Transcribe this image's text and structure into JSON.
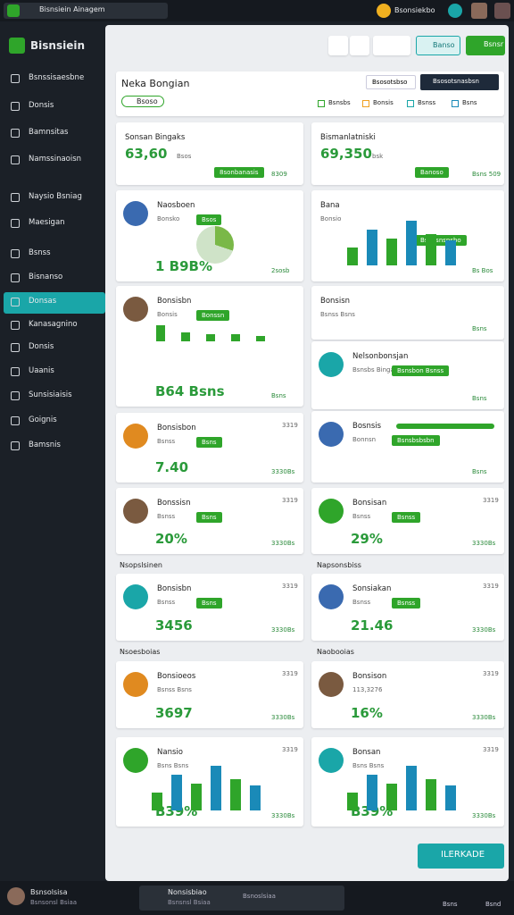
{
  "topbar": {
    "search": "Bisnsiein Ainagem",
    "user": "Bsonsiekbo"
  },
  "sidebar": {
    "brand": "Bisnsiein",
    "items": [
      "Bsnssisaesbne",
      "Donsis",
      "Bamnsitas",
      "Namssinaoisn",
      "Naysio Bsniag",
      "Maesigan",
      "Bsnss",
      "Bisnanso",
      "Donsas",
      "Kanasagnino",
      "Donsis",
      "Uaanis",
      "Sunsisiaisis",
      "Goignis",
      "Bamsnis"
    ]
  },
  "header": {
    "outline_button": "Banso",
    "green_button": "Bsnsr"
  },
  "panel": {
    "title": "Neka Bongian",
    "tag": "Bsoso",
    "dropdown": "Bsosotsbso",
    "dark_button": "Bsosotsnasbsn",
    "chips": [
      "Bsnsbs",
      "Bonsis",
      "Bsnss",
      "Bsns"
    ]
  },
  "cards": [
    {
      "title": "Sonsan Bingaks",
      "value": "63,60",
      "unit": "Bsos",
      "badge": "8sonbanasis",
      "foot": "8309"
    },
    {
      "title": "Bismanlatniski",
      "value": "69,350",
      "unit": "bsk",
      "badge": "Banoso",
      "foot": "Bsns 509"
    },
    {
      "title": "Naosboen",
      "sub": "Bonsko",
      "value": "1 B9B%",
      "badge": "Bsos",
      "foot": "2sosb"
    },
    {
      "title": "Bana",
      "sub": "Bonsio",
      "badge": "Bsnasnsnsbo",
      "foot": "Bs Bos"
    },
    {
      "title": "Bonsisbn",
      "sub": "Bonsis",
      "value": "B64 Bsns",
      "badge": "Bonssn",
      "foot": "Bsns"
    },
    {
      "title": "Bonsisn",
      "sub": "Bsnss Bsns",
      "foot": "Bsns"
    },
    {
      "title": "Nelsonbonsjan",
      "sub": "Bsnsbs Bingaesbbsoss",
      "badge": "Bsnsbon Bsnss",
      "foot": "Bsns"
    },
    {
      "title": "Bosnsis",
      "sub": "Bonnsn",
      "badge": "Bsnsbsbsbn",
      "foot": "Bsns"
    },
    {
      "title": "Bonsisbon",
      "sub": "Bsnss",
      "value": "7.40",
      "badge": "Bsns",
      "tr": "3319",
      "foot": "3330Bs"
    },
    {
      "title": "Bonssisn",
      "sub": "Bsnss",
      "value": "20%",
      "badge": "Bsns",
      "tr": "3319",
      "foot": "3330Bs"
    },
    {
      "title": "Bonsisan",
      "sub": "Bsnss",
      "value": "29%",
      "badge": "Bsnss",
      "tr": "3319",
      "foot": "3330Bs"
    },
    {
      "title": "Bonsisbn",
      "sub": "Bsnss",
      "value": "3456",
      "badge": "Bsns",
      "tr": "3319",
      "foot": "3330Bs"
    },
    {
      "title": "Sonsiakan",
      "sub": "Bsnss",
      "value": "21.46",
      "badge": "Bsnss",
      "tr": "3319",
      "foot": "3330Bs"
    },
    {
      "title": "Bonsioeos",
      "sub": "Bsnss Bsns",
      "value": "3697",
      "tr": "3319",
      "foot": "3330Bs"
    },
    {
      "title": "Bonsison",
      "sub": "113,3276",
      "value": "16%",
      "tr": "3319",
      "foot": "3330Bs"
    },
    {
      "title": "Nansio",
      "sub": "Bsns Bsns",
      "value": "B39%",
      "tr": "3319",
      "foot": "3330Bs"
    },
    {
      "title": "Bonsan",
      "sub": "Bsns Bsns",
      "value": "B39%",
      "tr": "3319",
      "foot": "3330Bs"
    }
  ],
  "sections": [
    "Nsopslsinen",
    "Napsonsbiss",
    "Nsoesboias",
    "Naobooias"
  ],
  "action_button": "ILERKADE",
  "bottombar": {
    "user": "Bsnsolsisa",
    "user_sub": "Bsnsonsl Bsiaa",
    "task": "Nonsisbiao",
    "task_sub": "Bsnsnsl Bsiaa",
    "search": "Bsnoslsiaa",
    "icon1": "Bsns",
    "icon2": "Bsnd"
  }
}
